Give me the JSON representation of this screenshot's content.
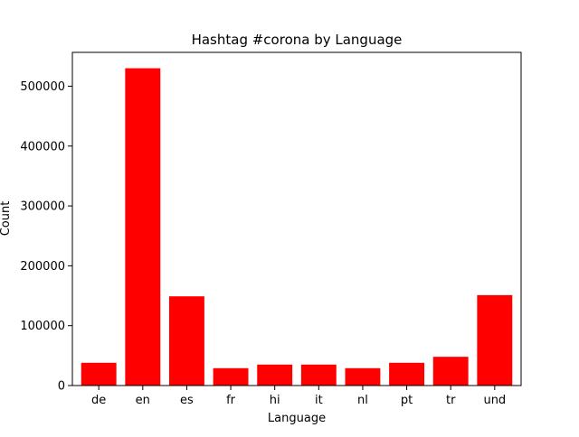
{
  "chart_data": {
    "type": "bar",
    "title": "Hashtag #corona by Language",
    "xlabel": "Language",
    "ylabel": "Count",
    "categories": [
      "de",
      "en",
      "es",
      "fr",
      "hi",
      "it",
      "nl",
      "pt",
      "tr",
      "und"
    ],
    "values": [
      38000,
      530000,
      149000,
      29000,
      35000,
      35000,
      29000,
      38000,
      48000,
      151000
    ],
    "ylim": [
      0,
      556500
    ],
    "yticks": [
      0,
      100000,
      200000,
      300000,
      400000,
      500000
    ],
    "ytick_labels": [
      "0",
      "100000",
      "200000",
      "300000",
      "400000",
      "500000"
    ],
    "bar_color": "#ff0000",
    "grid": false,
    "legend": "none"
  }
}
